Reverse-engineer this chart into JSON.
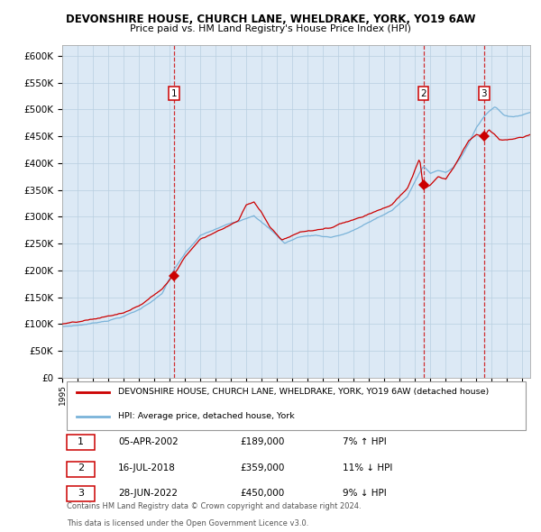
{
  "title": "DEVONSHIRE HOUSE, CHURCH LANE, WHELDRAKE, YORK, YO19 6AW",
  "subtitle": "Price paid vs. HM Land Registry's House Price Index (HPI)",
  "legend_line1": "DEVONSHIRE HOUSE, CHURCH LANE, WHELDRAKE, YORK, YO19 6AW (detached house)",
  "legend_line2": "HPI: Average price, detached house, York",
  "transactions": [
    {
      "num": 1,
      "date": "05-APR-2002",
      "price": 189000,
      "pct": "7%",
      "dir": "↑"
    },
    {
      "num": 2,
      "date": "16-JUL-2018",
      "price": 359000,
      "pct": "11%",
      "dir": "↓"
    },
    {
      "num": 3,
      "date": "28-JUN-2022",
      "price": 450000,
      "pct": "9%",
      "dir": "↓"
    }
  ],
  "transaction_dates_decimal": [
    2002.27,
    2018.54,
    2022.49
  ],
  "hpi_color": "#7ab3d9",
  "price_color": "#cc0000",
  "bg_color": "#dce9f5",
  "grid_color": "#b8cfe0",
  "vline_color": "#cc0000",
  "ylim": [
    0,
    620000
  ],
  "yticks": [
    0,
    50000,
    100000,
    150000,
    200000,
    250000,
    300000,
    350000,
    400000,
    450000,
    500000,
    550000,
    600000
  ],
  "xlim_start": 1995.0,
  "xlim_end": 2025.5,
  "footnote1": "Contains HM Land Registry data © Crown copyright and database right 2024.",
  "footnote2": "This data is licensed under the Open Government Licence v3.0."
}
